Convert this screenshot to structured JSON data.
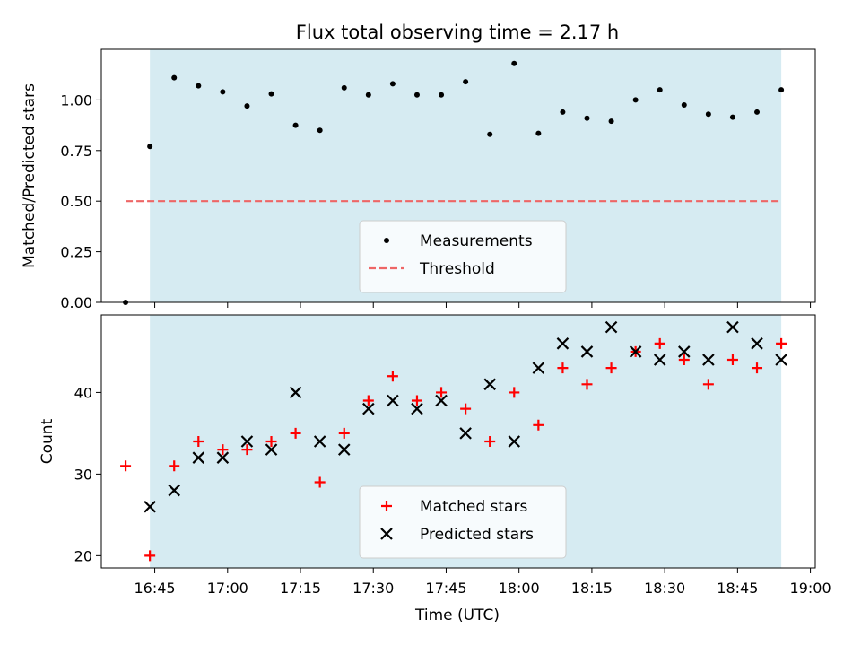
{
  "chart_data": {
    "title": "Flux total observing time = 2.17 h",
    "xlabel": "Time (UTC)",
    "xlim": [
      "16:34",
      "19:01"
    ],
    "x_ticks": [
      "16:45",
      "17:00",
      "17:15",
      "17:30",
      "17:45",
      "18:00",
      "18:15",
      "18:30",
      "18:45",
      "19:00"
    ],
    "observing_window": {
      "start": "16:44",
      "end": "18:54",
      "color": "#add8e6"
    },
    "panels": [
      {
        "type": "scatter",
        "ylabel": "Matched/Predicted stars",
        "ylim": [
          0,
          1.25
        ],
        "y_ticks": [
          "0.00",
          "0.25",
          "0.50",
          "0.75",
          "1.00"
        ],
        "legend_position": "lower center",
        "series": [
          {
            "name": "Measurements",
            "color": "#000000",
            "marker": "dot",
            "x": [
              "16:39",
              "16:44",
              "16:49",
              "16:54",
              "16:59",
              "17:04",
              "17:09",
              "17:14",
              "17:19",
              "17:24",
              "17:29",
              "17:34",
              "17:39",
              "17:44",
              "17:49",
              "17:54",
              "17:59",
              "18:04",
              "18:09",
              "18:14",
              "18:19",
              "18:24",
              "18:29",
              "18:34",
              "18:39",
              "18:44",
              "18:49",
              "18:54"
            ],
            "y": [
              0.0,
              0.77,
              1.11,
              1.07,
              1.04,
              0.97,
              1.03,
              0.875,
              0.85,
              1.06,
              1.025,
              1.08,
              1.025,
              1.025,
              1.09,
              0.83,
              1.18,
              0.835,
              0.94,
              0.91,
              0.895,
              1.0,
              1.05,
              0.975,
              0.93,
              0.915,
              0.94,
              1.05
            ]
          }
        ],
        "threshold": {
          "name": "Threshold",
          "value": 0.5,
          "x_from": "16:39",
          "x_to": "18:54",
          "color": "#ee6666",
          "style": "dashed"
        }
      },
      {
        "type": "scatter",
        "ylabel": "Count",
        "ylim": [
          18.5,
          49.5
        ],
        "y_ticks": [
          "20",
          "30",
          "40"
        ],
        "legend_position": "lower center",
        "series": [
          {
            "name": "Matched stars",
            "color": "#ff0000",
            "marker": "plus",
            "x": [
              "16:39",
              "16:44",
              "16:49",
              "16:54",
              "16:59",
              "17:04",
              "17:09",
              "17:14",
              "17:19",
              "17:24",
              "17:29",
              "17:34",
              "17:39",
              "17:44",
              "17:49",
              "17:54",
              "17:59",
              "18:04",
              "18:09",
              "18:14",
              "18:19",
              "18:24",
              "18:29",
              "18:34",
              "18:39",
              "18:44",
              "18:49",
              "18:54"
            ],
            "y": [
              31,
              20,
              31,
              34,
              33,
              33,
              34,
              35,
              29,
              35,
              39,
              42,
              39,
              40,
              38,
              34,
              40,
              36,
              43,
              41,
              43,
              45,
              46,
              44,
              41,
              44,
              43,
              46
            ]
          },
          {
            "name": "Predicted stars",
            "color": "#000000",
            "marker": "x",
            "x": [
              "16:44",
              "16:49",
              "16:54",
              "16:59",
              "17:04",
              "17:09",
              "17:14",
              "17:19",
              "17:24",
              "17:29",
              "17:34",
              "17:39",
              "17:44",
              "17:49",
              "17:54",
              "17:59",
              "18:04",
              "18:09",
              "18:14",
              "18:19",
              "18:24",
              "18:29",
              "18:34",
              "18:39",
              "18:44",
              "18:49",
              "18:54"
            ],
            "y": [
              26,
              28,
              32,
              32,
              34,
              33,
              40,
              34,
              33,
              38,
              39,
              38,
              39,
              35,
              41,
              34,
              43,
              46,
              45,
              48,
              45,
              44,
              45,
              44,
              48,
              46,
              44
            ]
          }
        ]
      }
    ]
  }
}
